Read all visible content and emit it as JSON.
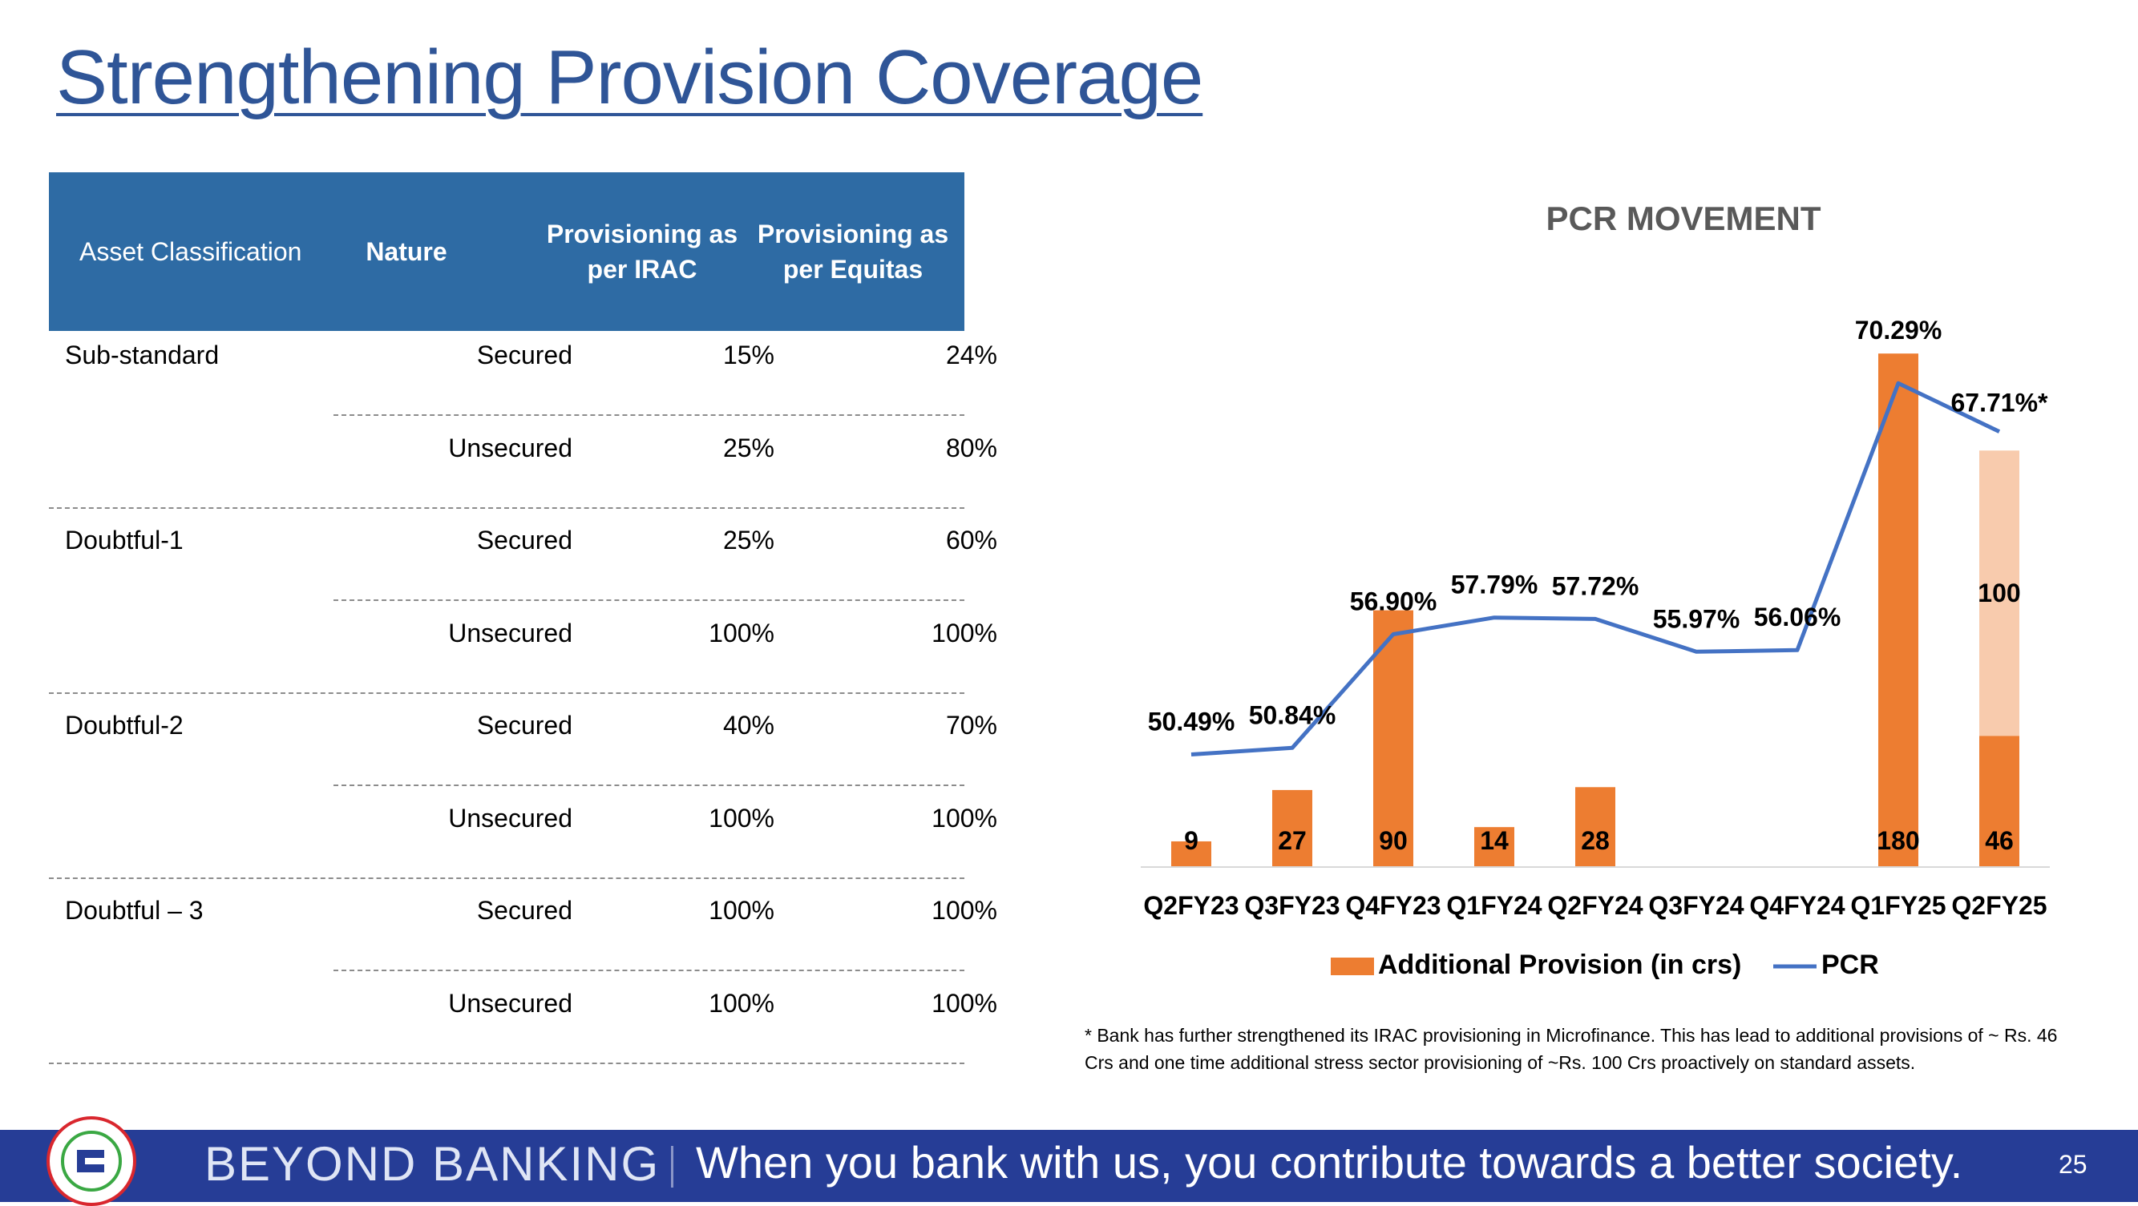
{
  "slide": {
    "title": "Strengthening Provision Coverage",
    "page_number": "25",
    "footnote": "* Bank has further strengthened its IRAC provisioning in Microfinance. This has lead to additional provisions of ~ Rs. 46 Crs and one time additional stress sector provisioning of ~Rs. 100 Crs proactively on standard assets."
  },
  "table": {
    "headers": [
      "Asset Classification",
      "Nature",
      "Provisioning as per IRAC",
      "Provisioning as per Equitas"
    ],
    "rows": [
      {
        "classification": "Sub-standard",
        "nature": "Secured",
        "irac": "15%",
        "equitas": "24%"
      },
      {
        "classification": "",
        "nature": "Unsecured",
        "irac": "25%",
        "equitas": "80%"
      },
      {
        "classification": "Doubtful-1",
        "nature": "Secured",
        "irac": "25%",
        "equitas": "60%"
      },
      {
        "classification": "",
        "nature": "Unsecured",
        "irac": "100%",
        "equitas": "100%"
      },
      {
        "classification": "Doubtful-2",
        "nature": "Secured",
        "irac": "40%",
        "equitas": "70%"
      },
      {
        "classification": "",
        "nature": "Unsecured",
        "irac": "100%",
        "equitas": "100%"
      },
      {
        "classification": "Doubtful – 3",
        "nature": "Secured",
        "irac": "100%",
        "equitas": "100%"
      },
      {
        "classification": "",
        "nature": "Unsecured",
        "irac": "100%",
        "equitas": "100%"
      }
    ]
  },
  "chart_data": {
    "type": "bar",
    "title": "PCR MOVEMENT",
    "categories": [
      "Q2FY23",
      "Q3FY23",
      "Q4FY23",
      "Q1FY24",
      "Q2FY24",
      "Q3FY24",
      "Q4FY24",
      "Q1FY25",
      "Q2FY25"
    ],
    "series": [
      {
        "name": "Additional Provision (in crs)",
        "kind": "bar",
        "color": "#ED7D31",
        "values": [
          9,
          27,
          90,
          14,
          28,
          null,
          null,
          180,
          46
        ],
        "labels": [
          "9",
          "27",
          "90",
          "14",
          "28",
          "",
          "",
          "180",
          "46"
        ]
      },
      {
        "name": "",
        "kind": "bar-stacked",
        "color": "#F8CBAD",
        "values": [
          null,
          null,
          null,
          null,
          null,
          null,
          null,
          null,
          100
        ],
        "labels": [
          "",
          "",
          "",
          "",
          "",
          "",
          "",
          "",
          "100"
        ]
      },
      {
        "name": "PCR",
        "kind": "line",
        "color": "#4472C4",
        "values": [
          50.49,
          50.84,
          56.9,
          57.79,
          57.72,
          55.97,
          56.06,
          70.29,
          67.71
        ],
        "labels": [
          "50.49%",
          "50.84%",
          "56.90%",
          "57.79%",
          "57.72%",
          "55.97%",
          "56.06%",
          "70.29%",
          "67.71%*"
        ]
      }
    ],
    "legend": {
      "position": "bottom",
      "items": [
        "Additional Provision (in crs)",
        "PCR"
      ]
    },
    "gridlines": false
  },
  "footer": {
    "tagline_left": "BEYOND BANKING",
    "tagline_right": "When you bank with us, you contribute towards a better society."
  },
  "colors": {
    "title": "#2F5597",
    "table_header": "#2E6BA4",
    "footer_band": "#263D96",
    "bar": "#ED7D31",
    "bar_stacked": "#F8CBAD",
    "line": "#4472C4"
  }
}
